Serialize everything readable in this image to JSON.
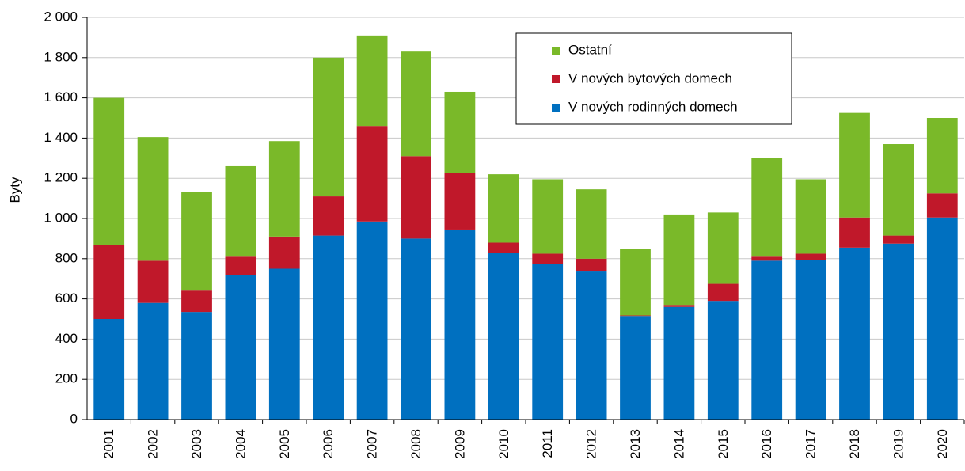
{
  "chart_data": {
    "type": "stacked_bar",
    "y_label": "Byty",
    "categories": [
      "2001",
      "2002",
      "2003",
      "2004",
      "2005",
      "2006",
      "2007",
      "2008",
      "2009",
      "2010",
      "2011",
      "2012",
      "2013",
      "2014",
      "2015",
      "2016",
      "2017",
      "2018",
      "2019",
      "2020"
    ],
    "series": [
      {
        "name": "V nových rodinných domech",
        "color": "#0070c0",
        "values": [
          500,
          580,
          535,
          720,
          750,
          915,
          985,
          900,
          945,
          830,
          775,
          740,
          515,
          560,
          590,
          790,
          795,
          855,
          875,
          1005
        ]
      },
      {
        "name": "V nových bytových domech",
        "color": "#c0182a",
        "values": [
          370,
          210,
          110,
          90,
          160,
          195,
          475,
          410,
          280,
          50,
          50,
          60,
          3,
          10,
          85,
          20,
          30,
          150,
          40,
          120
        ]
      },
      {
        "name": "Ostatní",
        "color": "#7ab929",
        "values": [
          730,
          615,
          485,
          450,
          475,
          690,
          450,
          520,
          405,
          340,
          370,
          345,
          330,
          450,
          355,
          490,
          370,
          520,
          455,
          375
        ]
      }
    ],
    "ylim": [
      0,
      2000
    ],
    "yticks": [
      0,
      200,
      400,
      600,
      800,
      {
        "value": 1000,
        "label": "1 000"
      },
      {
        "value": 1200,
        "label": "1 200"
      },
      {
        "value": 1400,
        "label": "1 400"
      },
      {
        "value": 1600,
        "label": "1 600"
      },
      {
        "value": 1800,
        "label": "1 800"
      },
      {
        "value": 2000,
        "label": "2 000"
      }
    ],
    "grid": true
  }
}
